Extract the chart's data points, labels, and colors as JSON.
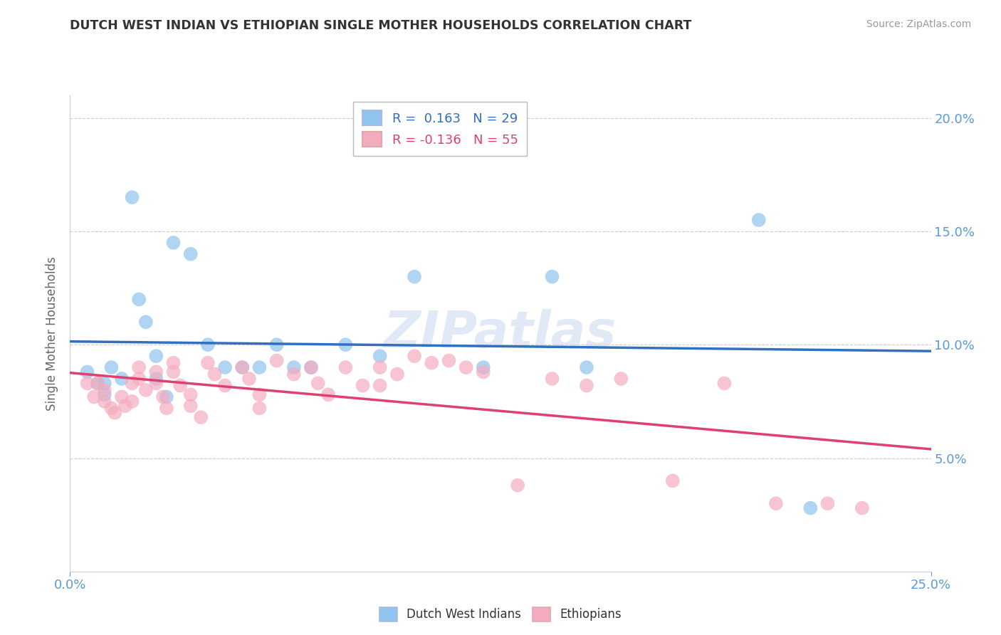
{
  "title": "DUTCH WEST INDIAN VS ETHIOPIAN SINGLE MOTHER HOUSEHOLDS CORRELATION CHART",
  "source": "Source: ZipAtlas.com",
  "ylabel": "Single Mother Households",
  "xlim": [
    0.0,
    0.25
  ],
  "ylim": [
    0.0,
    0.21
  ],
  "yticks": [
    0.05,
    0.1,
    0.15,
    0.2
  ],
  "ytick_labels": [
    "5.0%",
    "10.0%",
    "15.0%",
    "20.0%"
  ],
  "xticks": [
    0.0,
    0.25
  ],
  "xtick_labels": [
    "0.0%",
    "25.0%"
  ],
  "dutch_color": "#8EC4ED",
  "ethiopian_color": "#F5ABBE",
  "dutch_line_color": "#3070C0",
  "ethiopian_line_color": "#E04070",
  "dutch_R": 0.163,
  "dutch_N": 29,
  "ethiopian_R": -0.136,
  "ethiopian_N": 55,
  "watermark": "ZIPatlas",
  "dutch_x": [
    0.005,
    0.008,
    0.01,
    0.01,
    0.012,
    0.015,
    0.018,
    0.02,
    0.022,
    0.025,
    0.025,
    0.028,
    0.03,
    0.035,
    0.04,
    0.045,
    0.05,
    0.055,
    0.06,
    0.065,
    0.07,
    0.08,
    0.09,
    0.1,
    0.12,
    0.14,
    0.15,
    0.2,
    0.215
  ],
  "dutch_y": [
    0.088,
    0.083,
    0.078,
    0.083,
    0.09,
    0.085,
    0.165,
    0.12,
    0.11,
    0.095,
    0.085,
    0.077,
    0.145,
    0.14,
    0.1,
    0.09,
    0.09,
    0.09,
    0.1,
    0.09,
    0.09,
    0.1,
    0.095,
    0.13,
    0.09,
    0.13,
    0.09,
    0.155,
    0.028
  ],
  "ethiopian_x": [
    0.005,
    0.007,
    0.008,
    0.01,
    0.01,
    0.012,
    0.013,
    0.015,
    0.016,
    0.018,
    0.018,
    0.02,
    0.02,
    0.022,
    0.025,
    0.025,
    0.027,
    0.028,
    0.03,
    0.03,
    0.032,
    0.035,
    0.035,
    0.038,
    0.04,
    0.042,
    0.045,
    0.05,
    0.052,
    0.055,
    0.055,
    0.06,
    0.065,
    0.07,
    0.072,
    0.075,
    0.08,
    0.085,
    0.09,
    0.09,
    0.095,
    0.1,
    0.105,
    0.11,
    0.115,
    0.12,
    0.13,
    0.14,
    0.15,
    0.16,
    0.175,
    0.19,
    0.205,
    0.22,
    0.23
  ],
  "ethiopian_y": [
    0.083,
    0.077,
    0.083,
    0.08,
    0.075,
    0.072,
    0.07,
    0.077,
    0.073,
    0.083,
    0.075,
    0.09,
    0.085,
    0.08,
    0.088,
    0.083,
    0.077,
    0.072,
    0.092,
    0.088,
    0.082,
    0.078,
    0.073,
    0.068,
    0.092,
    0.087,
    0.082,
    0.09,
    0.085,
    0.078,
    0.072,
    0.093,
    0.087,
    0.09,
    0.083,
    0.078,
    0.09,
    0.082,
    0.09,
    0.082,
    0.087,
    0.095,
    0.092,
    0.093,
    0.09,
    0.088,
    0.038,
    0.085,
    0.082,
    0.085,
    0.04,
    0.083,
    0.03,
    0.03,
    0.028
  ]
}
